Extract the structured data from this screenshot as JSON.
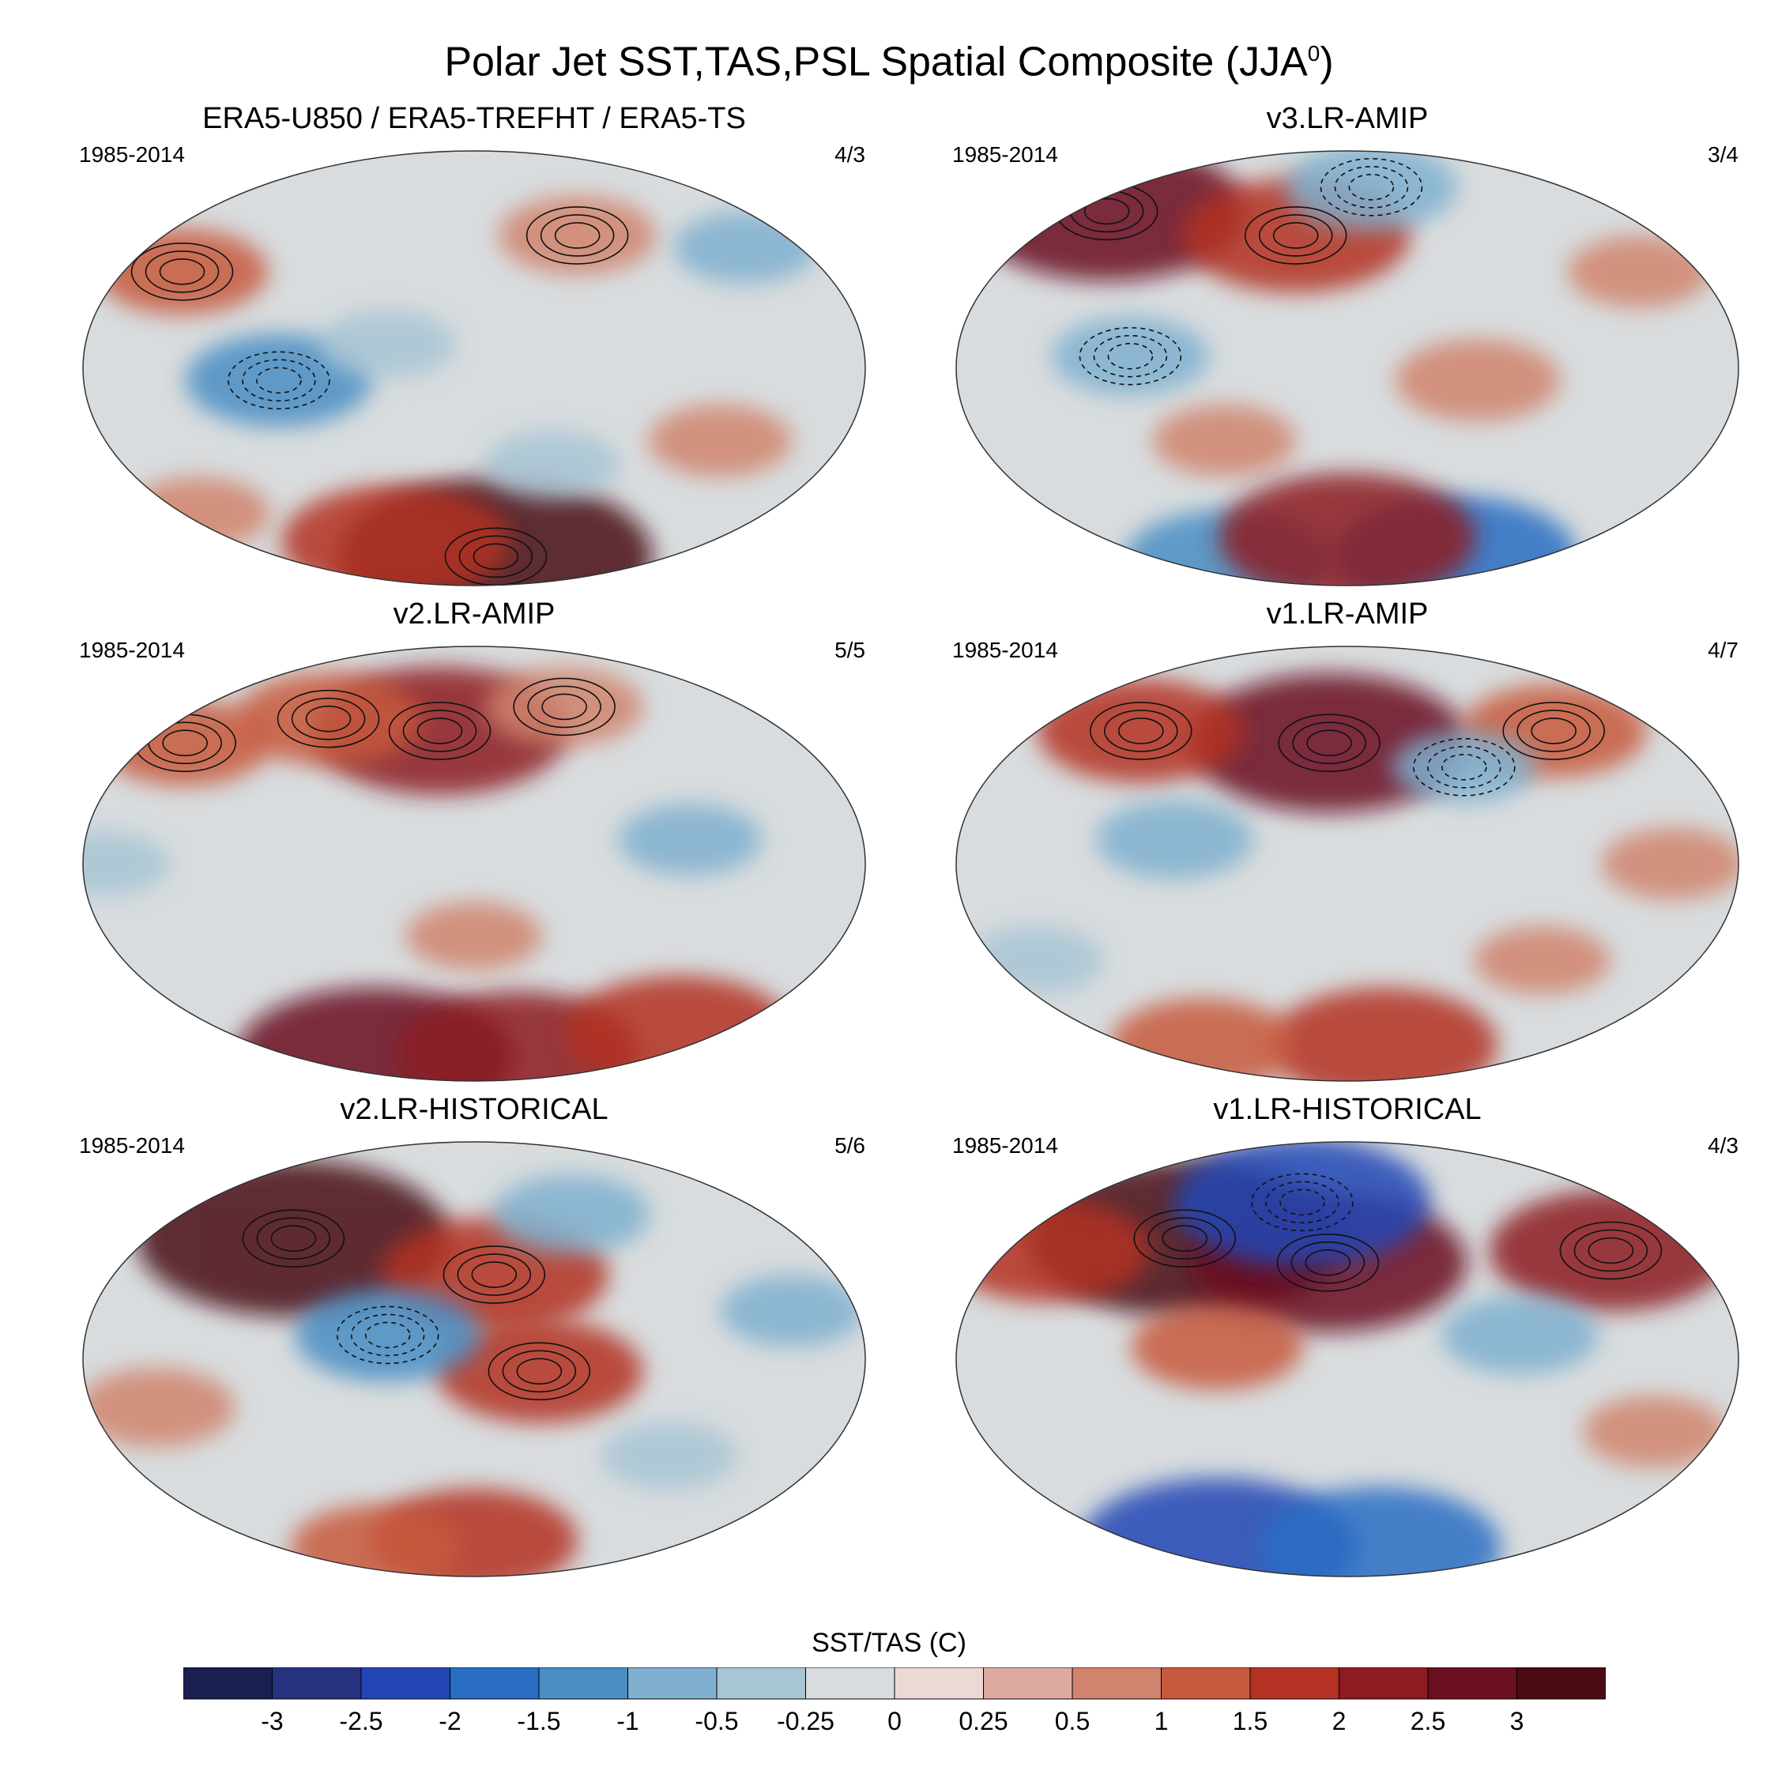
{
  "title": {
    "text": "Polar Jet SST,TAS,PSL Spatial Composite (JJA",
    "superscript": "0",
    "suffix": ")"
  },
  "panels": [
    {
      "title": "ERA5-U850 / ERA5-TREFHT / ERA5-TS",
      "years": "1985-2014",
      "ratio": "4/3",
      "anomalies": [
        {
          "lon": -150,
          "lat": 40,
          "value": 1.0
        },
        {
          "lon": 60,
          "lat": 55,
          "value": 0.8
        },
        {
          "lon": -90,
          "lat": -5,
          "value": -1.2
        },
        {
          "lon": 20,
          "lat": -78,
          "value": 3.0
        },
        {
          "lon": -60,
          "lat": -72,
          "value": 1.8
        },
        {
          "lon": 120,
          "lat": -30,
          "value": 0.6
        },
        {
          "lon": 150,
          "lat": 50,
          "value": -0.6
        },
        {
          "lon": -40,
          "lat": 10,
          "value": -0.5
        },
        {
          "lon": 40,
          "lat": -40,
          "value": -0.5
        },
        {
          "lon": -170,
          "lat": -60,
          "value": 0.6
        }
      ]
    },
    {
      "title": "v3.LR-AMIP",
      "years": "1985-2014",
      "ratio": "3/4",
      "anomalies": [
        {
          "lon": -160,
          "lat": 65,
          "value": 2.5
        },
        {
          "lon": -30,
          "lat": 55,
          "value": 1.8
        },
        {
          "lon": 20,
          "lat": 75,
          "value": -1.0
        },
        {
          "lon": -100,
          "lat": 5,
          "value": -0.8
        },
        {
          "lon": 100,
          "lat": -78,
          "value": -2.0
        },
        {
          "lon": -120,
          "lat": -80,
          "value": -1.5
        },
        {
          "lon": 60,
          "lat": -5,
          "value": 0.9
        },
        {
          "lon": -60,
          "lat": -30,
          "value": 0.6
        },
        {
          "lon": 150,
          "lat": 40,
          "value": 0.6
        },
        {
          "lon": 0,
          "lat": -70,
          "value": 2.2
        }
      ]
    },
    {
      "title": "v2.LR-AMIP",
      "years": "1985-2014",
      "ratio": "5/5",
      "anomalies": [
        {
          "lon": -20,
          "lat": 55,
          "value": 2.2
        },
        {
          "lon": -90,
          "lat": 60,
          "value": 1.2
        },
        {
          "lon": -160,
          "lat": 50,
          "value": 1.0
        },
        {
          "lon": 60,
          "lat": 65,
          "value": 0.8
        },
        {
          "lon": -100,
          "lat": -80,
          "value": 2.5
        },
        {
          "lon": 40,
          "lat": -78,
          "value": 2.0
        },
        {
          "lon": 150,
          "lat": -70,
          "value": 1.8
        },
        {
          "lon": 100,
          "lat": 10,
          "value": -0.6
        },
        {
          "lon": -170,
          "lat": 0,
          "value": -0.4
        },
        {
          "lon": 0,
          "lat": -30,
          "value": 0.5
        }
      ]
    },
    {
      "title": "v1.LR-AMIP",
      "years": "1985-2014",
      "ratio": "4/7",
      "anomalies": [
        {
          "lon": -10,
          "lat": 50,
          "value": 2.5
        },
        {
          "lon": -120,
          "lat": 55,
          "value": 1.5
        },
        {
          "lon": 120,
          "lat": 55,
          "value": 1.2
        },
        {
          "lon": 60,
          "lat": 40,
          "value": -0.6
        },
        {
          "lon": 30,
          "lat": -75,
          "value": 1.8
        },
        {
          "lon": -120,
          "lat": -75,
          "value": 1.2
        },
        {
          "lon": -80,
          "lat": 10,
          "value": -0.8
        },
        {
          "lon": 150,
          "lat": 0,
          "value": 0.6
        },
        {
          "lon": -160,
          "lat": -40,
          "value": -0.5
        },
        {
          "lon": 100,
          "lat": -40,
          "value": 0.5
        }
      ]
    },
    {
      "title": "v2.LR-HISTORICAL",
      "years": "1985-2014",
      "ratio": "5/6",
      "anomalies": [
        {
          "lon": -100,
          "lat": 50,
          "value": 3.0
        },
        {
          "lon": 10,
          "lat": 35,
          "value": 1.8
        },
        {
          "lon": 30,
          "lat": -5,
          "value": 1.5
        },
        {
          "lon": -40,
          "lat": 10,
          "value": -1.2
        },
        {
          "lon": 60,
          "lat": 60,
          "value": -0.8
        },
        {
          "lon": 150,
          "lat": 20,
          "value": -0.6
        },
        {
          "lon": -150,
          "lat": -20,
          "value": 0.8
        },
        {
          "lon": 0,
          "lat": -75,
          "value": 1.5
        },
        {
          "lon": -90,
          "lat": -78,
          "value": 1.0
        },
        {
          "lon": 100,
          "lat": -40,
          "value": -0.5
        }
      ]
    },
    {
      "title": "v1.LR-HISTORICAL",
      "years": "1985-2014",
      "ratio": "4/3",
      "anomalies": [
        {
          "lon": -90,
          "lat": 50,
          "value": 3.0
        },
        {
          "lon": -10,
          "lat": 40,
          "value": 2.5
        },
        {
          "lon": -30,
          "lat": 65,
          "value": -2.2
        },
        {
          "lon": 140,
          "lat": 45,
          "value": 2.0
        },
        {
          "lon": -160,
          "lat": 45,
          "value": 1.5
        },
        {
          "lon": -60,
          "lat": 5,
          "value": 1.0
        },
        {
          "lon": -120,
          "lat": -78,
          "value": -2.5
        },
        {
          "lon": 30,
          "lat": -78,
          "value": -2.0
        },
        {
          "lon": 80,
          "lat": 10,
          "value": -0.8
        },
        {
          "lon": 150,
          "lat": -30,
          "value": 0.6
        }
      ]
    }
  ],
  "colorbar": {
    "title": "SST/TAS (C)",
    "labels": [
      "-3",
      "-2.5",
      "-2",
      "-1.5",
      "-1",
      "-0.5",
      "-0.25",
      "0",
      "0.25",
      "0.5",
      "1",
      "1.5",
      "2",
      "2.5",
      "3"
    ],
    "colors": [
      "#1b1f4f",
      "#27337f",
      "#2346b6",
      "#2a6ec4",
      "#4a8ec4",
      "#7fb0cf",
      "#a8c5d4",
      "#d8dcde",
      "#ecd9d6",
      "#deaa9f",
      "#d0846d",
      "#c75a3d",
      "#b33224",
      "#8c1b22",
      "#6a1020",
      "#4a0b15"
    ]
  }
}
